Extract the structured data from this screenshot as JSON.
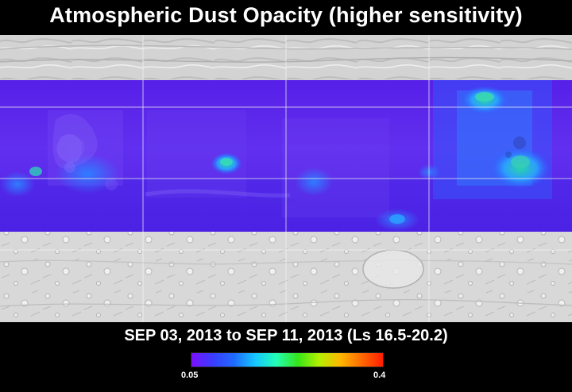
{
  "title": "Atmospheric Dust Opacity (higher sensitivity)",
  "date_range": "SEP 03, 2013 to SEP 11, 2013 (Ls 16.5-20.2)",
  "colorbar": {
    "min_label": "0.05",
    "max_label": "0.4",
    "min_value": 0.05,
    "max_value": 0.4,
    "colors": [
      "#7a10ff",
      "#3a3cff",
      "#1f6aff",
      "#16c8ff",
      "#22ffb4",
      "#35e41a",
      "#b4f000",
      "#ffb700",
      "#ff6a00",
      "#ff1d00"
    ]
  },
  "map": {
    "projection": "cylindrical",
    "grid_lines": true,
    "background": "shaded-relief",
    "data_band_color": "#5a25f0",
    "highlight_colors": [
      "#29c6a6",
      "#2a8cff",
      "#1d5cff"
    ]
  }
}
